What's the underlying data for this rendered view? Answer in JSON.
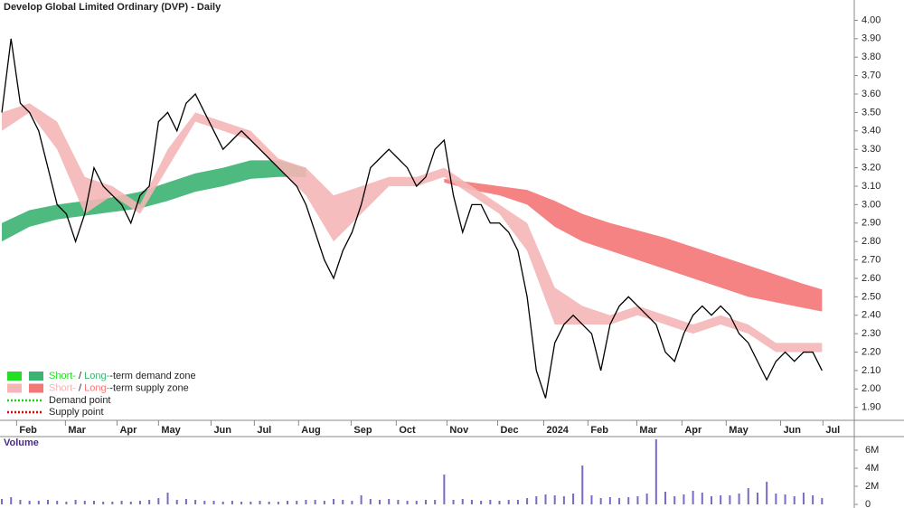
{
  "chart_data": [
    {
      "type": "line",
      "title": "Develop Global Limited Ordinary (DVP) - Daily",
      "x": [
        0,
        1,
        2,
        3,
        4,
        5,
        6,
        7,
        8,
        9,
        10,
        11,
        12,
        13,
        14,
        15,
        16,
        17,
        18,
        19,
        20,
        21,
        22,
        23,
        24,
        25,
        26,
        27,
        28,
        29,
        30,
        31,
        32,
        33,
        34,
        35,
        36,
        37,
        38,
        39,
        40,
        41,
        42,
        43,
        44,
        45,
        46,
        47,
        48,
        49,
        50,
        51,
        52,
        53,
        54,
        55,
        56,
        57,
        58,
        59,
        60,
        61,
        62,
        63,
        64,
        65,
        66,
        67,
        68,
        69,
        70,
        71,
        72,
        73,
        74,
        75,
        76,
        77,
        78,
        79,
        80,
        81,
        82,
        83,
        84,
        85,
        86,
        87,
        88,
        89
      ],
      "series": [
        {
          "name": "Price",
          "color": "#000000",
          "values": [
            3.5,
            3.9,
            3.55,
            3.5,
            3.4,
            3.2,
            3.0,
            2.95,
            2.8,
            2.95,
            3.2,
            3.1,
            3.05,
            3.0,
            2.9,
            3.05,
            3.1,
            3.45,
            3.5,
            3.4,
            3.55,
            3.6,
            3.5,
            3.4,
            3.3,
            3.35,
            3.4,
            3.35,
            3.3,
            3.25,
            3.2,
            3.15,
            3.1,
            3.0,
            2.85,
            2.7,
            2.6,
            2.75,
            2.85,
            3.0,
            3.2,
            3.25,
            3.3,
            3.25,
            3.2,
            3.1,
            3.15,
            3.3,
            3.35,
            3.05,
            2.85,
            3.0,
            3.0,
            2.9,
            2.9,
            2.85,
            2.75,
            2.5,
            2.1,
            1.95,
            2.25,
            2.35,
            2.4,
            2.35,
            2.3,
            2.1,
            2.35,
            2.45,
            2.5,
            2.45,
            2.4,
            2.35,
            2.2,
            2.15,
            2.3,
            2.4,
            2.45,
            2.4,
            2.45,
            2.4,
            2.3,
            2.25,
            2.15,
            2.05,
            2.15,
            2.2,
            2.15,
            2.2,
            2.2,
            2.1
          ]
        }
      ],
      "bands": [
        {
          "color": "#3cb371",
          "x": [
            0,
            3,
            6,
            9,
            12,
            15,
            18,
            21,
            24,
            27,
            30,
            33
          ],
          "lower": [
            2.8,
            2.88,
            2.92,
            2.94,
            2.96,
            2.98,
            3.02,
            3.07,
            3.1,
            3.14,
            3.15,
            3.15
          ],
          "upper": [
            2.9,
            2.97,
            3.0,
            3.02,
            3.04,
            3.07,
            3.12,
            3.17,
            3.2,
            3.24,
            3.24,
            3.2
          ]
        },
        {
          "color": "#f47676",
          "x": [
            48,
            51,
            54,
            57,
            60,
            63,
            66,
            69,
            72,
            75,
            78,
            81,
            84,
            87,
            89
          ],
          "lower": [
            3.12,
            3.08,
            3.05,
            3.0,
            2.88,
            2.8,
            2.75,
            2.7,
            2.65,
            2.6,
            2.55,
            2.5,
            2.47,
            2.44,
            2.42
          ],
          "upper": [
            3.14,
            3.12,
            3.1,
            3.08,
            3.02,
            2.95,
            2.9,
            2.86,
            2.82,
            2.77,
            2.72,
            2.67,
            2.62,
            2.57,
            2.54
          ]
        },
        {
          "color": "#f4b6b6",
          "x": [
            0,
            3,
            6,
            9,
            12,
            15,
            18,
            21,
            24,
            27,
            30,
            33,
            36,
            39,
            42,
            45,
            48,
            51,
            54,
            57,
            60,
            63,
            66,
            69,
            72,
            75,
            78,
            81,
            84,
            87,
            89
          ],
          "lower": [
            3.4,
            3.5,
            3.3,
            2.95,
            3.05,
            2.95,
            3.2,
            3.45,
            3.4,
            3.35,
            3.2,
            3.05,
            2.8,
            2.95,
            3.1,
            3.1,
            3.15,
            3.05,
            2.95,
            2.75,
            2.35,
            2.35,
            2.35,
            2.4,
            2.35,
            2.3,
            2.35,
            2.3,
            2.2,
            2.2,
            2.2
          ],
          "upper": [
            3.5,
            3.55,
            3.45,
            3.15,
            3.1,
            3.0,
            3.3,
            3.5,
            3.45,
            3.4,
            3.25,
            3.2,
            3.05,
            3.1,
            3.15,
            3.15,
            3.2,
            3.1,
            3.0,
            2.9,
            2.55,
            2.45,
            2.4,
            2.45,
            2.4,
            2.35,
            2.4,
            2.35,
            2.25,
            2.25,
            2.25
          ]
        }
      ],
      "legend": [
        {
          "short": "Short-",
          "sep": " / ",
          "long": "Long-",
          "rest": "-term demand zone",
          "short_color": "#22e022",
          "long_color": "#3cb371"
        },
        {
          "short": "Short-",
          "sep": " / ",
          "long": "Long-",
          "rest": "-term supply zone",
          "short_color": "#f4b6b6",
          "long_color": "#f47676"
        }
      ],
      "points": [
        {
          "label": "Demand point",
          "color": "#22cc22"
        },
        {
          "label": "Supply point",
          "color": "#e00000"
        }
      ],
      "xlim": [
        -0.2,
        92.5
      ],
      "xticks": [
        {
          "value": 1.6,
          "label": "Feb"
        },
        {
          "value": 6.9,
          "label": "Mar"
        },
        {
          "value": 12.5,
          "label": "Apr"
        },
        {
          "value": 17.0,
          "label": "May"
        },
        {
          "value": 22.7,
          "label": "Jun"
        },
        {
          "value": 27.4,
          "label": "Jul"
        },
        {
          "value": 32.2,
          "label": "Aug"
        },
        {
          "value": 37.9,
          "label": "Sep"
        },
        {
          "value": 42.8,
          "label": "Oct"
        },
        {
          "value": 48.3,
          "label": "Nov"
        },
        {
          "value": 53.8,
          "label": "Dec"
        },
        {
          "value": 58.8,
          "label": "2024"
        },
        {
          "value": 63.6,
          "label": "Feb"
        },
        {
          "value": 68.9,
          "label": "Mar"
        },
        {
          "value": 73.8,
          "label": "Apr"
        },
        {
          "value": 78.6,
          "label": "May"
        },
        {
          "value": 84.5,
          "label": "Jun"
        },
        {
          "value": 89.1,
          "label": "Jul"
        }
      ],
      "ylim": [
        1.83,
        4.11
      ],
      "yticks": [
        {
          "value": 1.9,
          "label": "1.90"
        },
        {
          "value": 2.0,
          "label": "2.00"
        },
        {
          "value": 2.1,
          "label": "2.10"
        },
        {
          "value": 2.2,
          "label": "2.20"
        },
        {
          "value": 2.3,
          "label": "2.30"
        },
        {
          "value": 2.4,
          "label": "2.40"
        },
        {
          "value": 2.5,
          "label": "2.50"
        },
        {
          "value": 2.6,
          "label": "2.60"
        },
        {
          "value": 2.7,
          "label": "2.70"
        },
        {
          "value": 2.8,
          "label": "2.80"
        },
        {
          "value": 2.9,
          "label": "2.90"
        },
        {
          "value": 3.0,
          "label": "3.00"
        },
        {
          "value": 3.1,
          "label": "3.10"
        },
        {
          "value": 3.2,
          "label": "3.20"
        },
        {
          "value": 3.3,
          "label": "3.30"
        },
        {
          "value": 3.4,
          "label": "3.40"
        },
        {
          "value": 3.5,
          "label": "3.50"
        },
        {
          "value": 3.6,
          "label": "3.60"
        },
        {
          "value": 3.7,
          "label": "3.70"
        },
        {
          "value": 3.8,
          "label": "3.80"
        },
        {
          "value": 3.9,
          "label": "3.90"
        },
        {
          "value": 4.0,
          "label": "4.00"
        }
      ]
    },
    {
      "type": "bar",
      "title": "Volume",
      "color": "#7b68c8",
      "x": [
        0,
        1,
        2,
        3,
        4,
        5,
        6,
        7,
        8,
        9,
        10,
        11,
        12,
        13,
        14,
        15,
        16,
        17,
        18,
        19,
        20,
        21,
        22,
        23,
        24,
        25,
        26,
        27,
        28,
        29,
        30,
        31,
        32,
        33,
        34,
        35,
        36,
        37,
        38,
        39,
        40,
        41,
        42,
        43,
        44,
        45,
        46,
        47,
        48,
        49,
        50,
        51,
        52,
        53,
        54,
        55,
        56,
        57,
        58,
        59,
        60,
        61,
        62,
        63,
        64,
        65,
        66,
        67,
        68,
        69,
        70,
        71,
        72,
        73,
        74,
        75,
        76,
        77,
        78,
        79,
        80,
        81,
        82,
        83,
        84,
        85,
        86,
        87,
        88,
        89
      ],
      "values": [
        600000,
        800000,
        500000,
        400000,
        400000,
        500000,
        400000,
        300000,
        500000,
        400000,
        400000,
        300000,
        300000,
        400000,
        300000,
        400000,
        500000,
        700000,
        1300000,
        500000,
        600000,
        500000,
        400000,
        400000,
        300000,
        400000,
        300000,
        300000,
        400000,
        300000,
        300000,
        400000,
        400000,
        500000,
        500000,
        400000,
        600000,
        500000,
        400000,
        1000000,
        600000,
        500000,
        600000,
        500000,
        400000,
        400000,
        500000,
        500000,
        3300000,
        500000,
        600000,
        500000,
        400000,
        500000,
        400000,
        500000,
        500000,
        700000,
        900000,
        1100000,
        1000000,
        900000,
        1200000,
        4300000,
        1000000,
        700000,
        800000,
        700000,
        800000,
        900000,
        1200000,
        7200000,
        1400000,
        900000,
        1100000,
        1500000,
        1300000,
        900000,
        1000000,
        1000000,
        1200000,
        1800000,
        1300000,
        2500000,
        1200000,
        1100000,
        900000,
        1300000,
        1000000,
        700000
      ],
      "xlim": [
        -0.2,
        92.5
      ],
      "ylim": [
        0,
        7500000
      ],
      "yticks": [
        0,
        {
          "value": 2000000,
          "label": "2M"
        },
        {
          "value": 4000000,
          "label": "4M"
        },
        {
          "value": 6000000,
          "label": "6M"
        }
      ]
    }
  ]
}
